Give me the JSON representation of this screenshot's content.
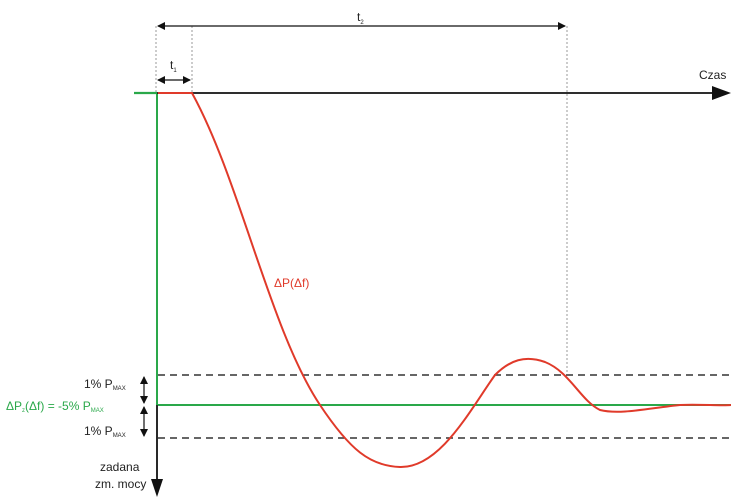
{
  "colors": {
    "axis": "#111111",
    "response_curve": "#e03a2a",
    "setpoint_line": "#2aa84a",
    "tolerance_band": "#333333",
    "guide_line": "#9a9a9a"
  },
  "labels": {
    "time_axis": "Czas",
    "t1": "t",
    "t1_sub": "1",
    "t2": "t",
    "t2_sub": "2",
    "curve": "ΔP(Δf)",
    "upper_band_pre": "1% P",
    "upper_band_sub": "MAX",
    "setpoint_pre": "ΔP",
    "setpoint_sub1": "z",
    "setpoint_mid": "(Δf) = -5% P",
    "setpoint_sub2": "MAX",
    "lower_band_pre": "1% P",
    "lower_band_sub": "MAX",
    "power_axis_line1": "zadana",
    "power_axis_line2": "zm. mocy"
  },
  "icons": [
    "arrow-right-icon",
    "arrow-down-icon",
    "double-arrow-icon"
  ]
}
